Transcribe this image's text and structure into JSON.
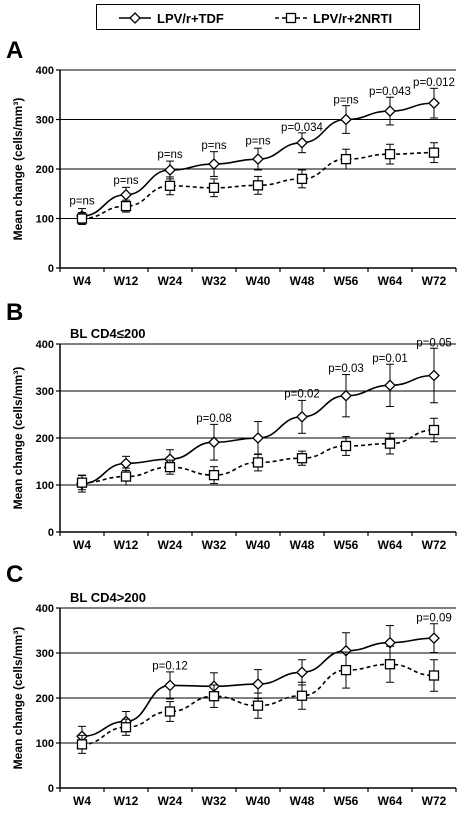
{
  "legend": [
    {
      "name": "LPV/r+TDF",
      "marker": "diamond",
      "dash": "solid"
    },
    {
      "name": "LPV/r+2NRTI",
      "marker": "square",
      "dash": "dashed"
    }
  ],
  "colors": {
    "line": "#000000",
    "background": "#ffffff"
  },
  "chart_data": [
    {
      "type": "line",
      "panel_letter": "A",
      "title": "",
      "subtitle": "",
      "ylabel": "Mean change (cells/mm³)",
      "xlabel": "",
      "categories": [
        "W4",
        "W12",
        "W24",
        "W32",
        "W40",
        "W48",
        "W56",
        "W64",
        "W72"
      ],
      "ylim": [
        0,
        400
      ],
      "yticks": [
        0,
        100,
        200,
        300,
        400
      ],
      "grid": true,
      "series": [
        {
          "name": "LPV/r+TDF",
          "values": [
            105,
            148,
            198,
            210,
            220,
            253,
            300,
            317,
            333
          ],
          "err": [
            15,
            15,
            18,
            25,
            22,
            20,
            28,
            28,
            30
          ]
        },
        {
          "name": "LPV/r+2NRTI",
          "values": [
            100,
            125,
            166,
            162,
            167,
            180,
            220,
            230,
            233
          ],
          "err": [
            12,
            12,
            18,
            18,
            18,
            18,
            20,
            20,
            20
          ]
        }
      ],
      "annotations": [
        {
          "category_index": 0,
          "text": "p=ns",
          "y": 128
        },
        {
          "category_index": 1,
          "text": "p=ns",
          "y": 170
        },
        {
          "category_index": 2,
          "text": "p=ns",
          "y": 222
        },
        {
          "category_index": 3,
          "text": "p=ns",
          "y": 240
        },
        {
          "category_index": 4,
          "text": "p=ns",
          "y": 250
        },
        {
          "category_index": 5,
          "text": "p=0.034",
          "y": 277
        },
        {
          "category_index": 6,
          "text": "p=ns",
          "y": 332
        },
        {
          "category_index": 7,
          "text": "p=0.043",
          "y": 349
        },
        {
          "category_index": 8,
          "text": "p=0.012",
          "y": 368
        }
      ]
    },
    {
      "type": "line",
      "panel_letter": "B",
      "title": "BL CD4≤200",
      "subtitle": "",
      "ylabel": "Mean change (cells/mm³)",
      "xlabel": "",
      "categories": [
        "W4",
        "W12",
        "W24",
        "W32",
        "W40",
        "W48",
        "W56",
        "W64",
        "W72"
      ],
      "ylim": [
        0,
        400
      ],
      "yticks": [
        0,
        100,
        200,
        300,
        400
      ],
      "grid": true,
      "series": [
        {
          "name": "LPV/r+TDF",
          "values": [
            103,
            146,
            155,
            191,
            200,
            245,
            290,
            312,
            333
          ],
          "err": [
            18,
            15,
            20,
            38,
            35,
            35,
            45,
            45,
            58
          ]
        },
        {
          "name": "LPV/r+2NRTI",
          "values": [
            105,
            118,
            138,
            121,
            148,
            157,
            183,
            188,
            217
          ],
          "err": [
            15,
            18,
            15,
            18,
            18,
            15,
            20,
            22,
            25
          ]
        }
      ],
      "annotations": [
        {
          "category_index": 3,
          "text": "p=0.08",
          "y": 234
        },
        {
          "category_index": 5,
          "text": "p=0.02",
          "y": 286
        },
        {
          "category_index": 6,
          "text": "p=0.03",
          "y": 340
        },
        {
          "category_index": 7,
          "text": "p=0.01",
          "y": 362
        },
        {
          "category_index": 8,
          "text": "p=0.05",
          "y": 395
        }
      ]
    },
    {
      "type": "line",
      "panel_letter": "C",
      "title": "BL CD4>200",
      "subtitle": "",
      "ylabel": "Mean change (cells/mm³)",
      "xlabel": "",
      "categories": [
        "W4",
        "W12",
        "W24",
        "W32",
        "W40",
        "W48",
        "W56",
        "W64",
        "W72"
      ],
      "ylim": [
        0,
        400
      ],
      "yticks": [
        0,
        100,
        200,
        300,
        400
      ],
      "grid": true,
      "series": [
        {
          "name": "LPV/r+TDF",
          "values": [
            115,
            148,
            228,
            226,
            231,
            257,
            305,
            323,
            333
          ],
          "err": [
            22,
            22,
            30,
            30,
            32,
            28,
            40,
            38,
            32
          ]
        },
        {
          "name": "LPV/r+2NRTI",
          "values": [
            97,
            135,
            170,
            204,
            183,
            205,
            262,
            275,
            250
          ],
          "err": [
            20,
            18,
            22,
            25,
            28,
            30,
            40,
            40,
            35
          ]
        }
      ],
      "annotations": [
        {
          "category_index": 2,
          "text": "p=0.12",
          "y": 263
        },
        {
          "category_index": 8,
          "text": "p=0.09",
          "y": 370
        }
      ]
    }
  ]
}
